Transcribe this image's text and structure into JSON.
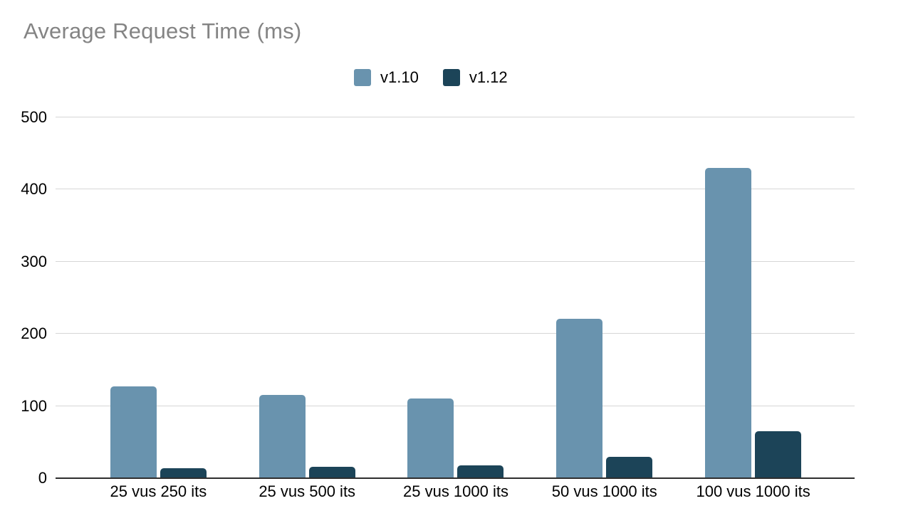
{
  "chart_data": {
    "type": "bar",
    "title": "Average Request Time (ms)",
    "xlabel": "",
    "ylabel": "",
    "categories": [
      "25 vus 250 its",
      "25 vus 500 its",
      "25 vus 1000 its",
      "50 vus 1000 its",
      "100 vus 1000 its"
    ],
    "series": [
      {
        "name": "v1.10",
        "color": "#6993ae",
        "values": [
          127,
          115,
          110,
          221,
          430
        ]
      },
      {
        "name": "v1.12",
        "color": "#1c4458",
        "values": [
          14,
          16,
          18,
          30,
          65
        ]
      }
    ],
    "ylim": [
      0,
      500
    ],
    "yticks": [
      0,
      100,
      200,
      300,
      400,
      500
    ],
    "ytick_labels": [
      "0",
      "100",
      "200",
      "300",
      "400",
      "500"
    ],
    "grid": true,
    "legend_position": "top-center",
    "colors": {
      "title_text": "#848484",
      "axis_text": "#000000",
      "gridline": "#d6d6d6",
      "baseline": "#2e2e2e",
      "background": "#ffffff"
    }
  }
}
